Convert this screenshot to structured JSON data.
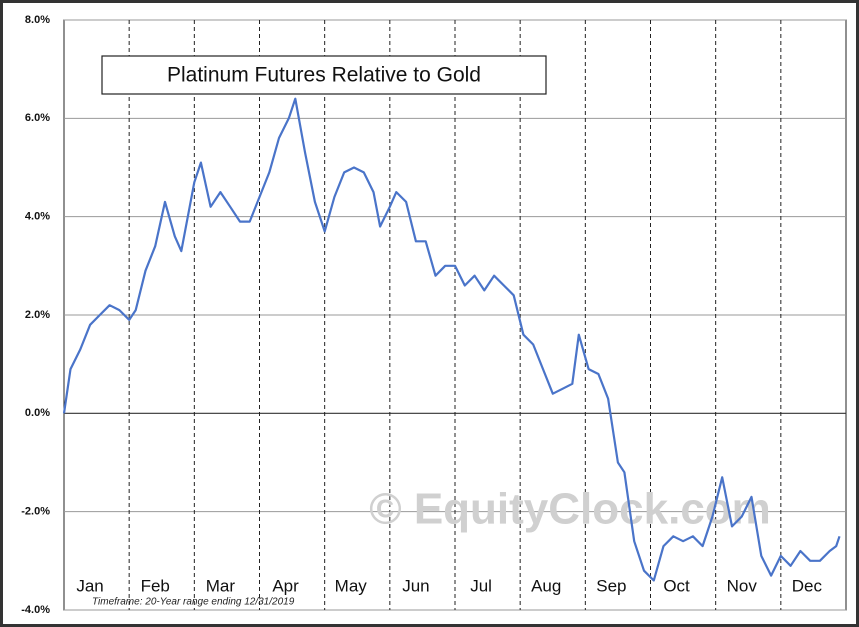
{
  "chart_data": {
    "type": "line",
    "title": "Platinum Futures Relative to Gold",
    "watermark": "© EquityClock.com",
    "footnote": "Timeframe: 20-Year range ending 12/31/2019",
    "categories": [
      "Jan",
      "Feb",
      "Mar",
      "Apr",
      "May",
      "Jun",
      "Jul",
      "Aug",
      "Sep",
      "Oct",
      "Nov",
      "Dec"
    ],
    "x": [
      0,
      0.1,
      0.25,
      0.4,
      0.55,
      0.7,
      0.85,
      1.0,
      1.1,
      1.25,
      1.4,
      1.55,
      1.7,
      1.8,
      1.9,
      2.0,
      2.1,
      2.25,
      2.4,
      2.55,
      2.7,
      2.85,
      3.0,
      3.15,
      3.3,
      3.45,
      3.55,
      3.7,
      3.85,
      4.0,
      4.15,
      4.3,
      4.45,
      4.6,
      4.75,
      4.85,
      5.0,
      5.1,
      5.25,
      5.4,
      5.55,
      5.7,
      5.85,
      6.0,
      6.15,
      6.3,
      6.45,
      6.6,
      6.75,
      6.9,
      7.05,
      7.2,
      7.35,
      7.5,
      7.65,
      7.8,
      7.9,
      8.05,
      8.2,
      8.35,
      8.5,
      8.6,
      8.75,
      8.9,
      9.05,
      9.2,
      9.35,
      9.5,
      9.65,
      9.8,
      9.95,
      10.1,
      10.25,
      10.4,
      10.55,
      10.7,
      10.85,
      11.0,
      11.15,
      11.3,
      11.45,
      11.6,
      11.75,
      11.85,
      11.9
    ],
    "values": [
      0,
      0.9,
      1.3,
      1.8,
      2.0,
      2.2,
      2.1,
      1.9,
      2.1,
      2.9,
      3.4,
      4.3,
      3.6,
      3.3,
      4.0,
      4.7,
      5.1,
      4.2,
      4.5,
      4.2,
      3.9,
      3.9,
      4.4,
      4.9,
      5.6,
      6.0,
      6.4,
      5.3,
      4.3,
      3.7,
      4.4,
      4.9,
      5.0,
      4.9,
      4.5,
      3.8,
      4.2,
      4.5,
      4.3,
      3.5,
      3.5,
      2.8,
      3.0,
      3.0,
      2.6,
      2.8,
      2.5,
      2.8,
      2.6,
      2.4,
      1.6,
      1.4,
      0.9,
      0.4,
      0.5,
      0.6,
      1.6,
      0.9,
      0.8,
      0.3,
      -1.0,
      -1.2,
      -2.6,
      -3.2,
      -3.4,
      -2.7,
      -2.5,
      -2.6,
      -2.5,
      -2.7,
      -2.1,
      -1.3,
      -2.3,
      -2.1,
      -1.7,
      -2.9,
      -3.3,
      -2.9,
      -3.1,
      -2.8,
      -3.0,
      -3.0,
      -2.8,
      -2.7,
      -2.5
    ],
    "color": "#4a74c9",
    "xlim": [
      0,
      12
    ],
    "ylim": [
      -4,
      8
    ],
    "yticks": [
      {
        "value": -4,
        "label": "-4.0%"
      },
      {
        "value": -2,
        "label": "-2.0%"
      },
      {
        "value": 0,
        "label": "0.0%"
      },
      {
        "value": 2,
        "label": "2.0%"
      },
      {
        "value": 4,
        "label": "4.0%"
      },
      {
        "value": 6,
        "label": "6.0%"
      },
      {
        "value": 8,
        "label": "8.0%"
      }
    ],
    "grid": true
  }
}
